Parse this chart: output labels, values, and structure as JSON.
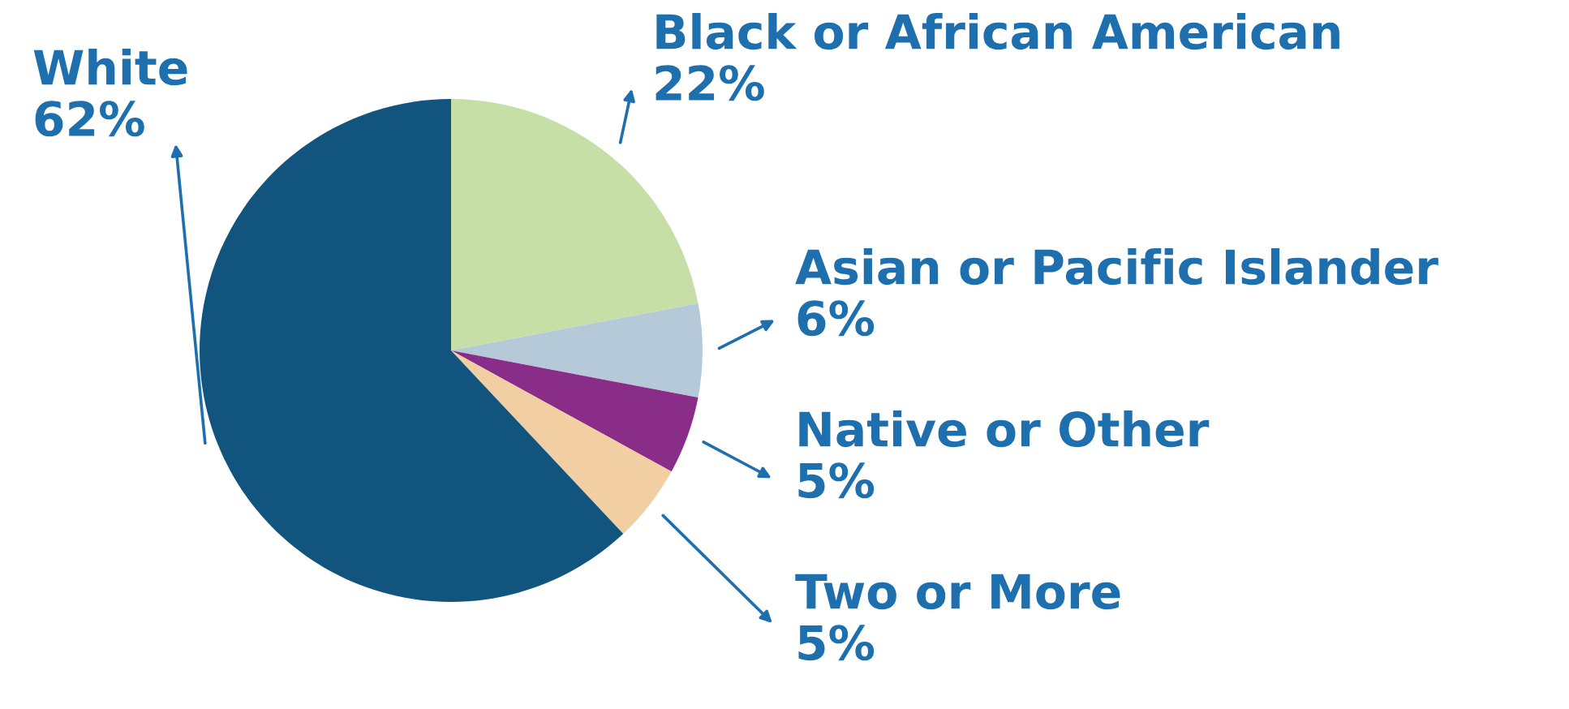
{
  "chart_data": {
    "type": "pie",
    "categories": [
      "Black or African American",
      "Asian or Pacific Islander",
      "Native or Other",
      "Two or More",
      "White"
    ],
    "values": [
      22,
      6,
      5,
      5,
      62
    ],
    "colors": [
      "#c6dfa6",
      "#b5c9d8",
      "#8a2d89",
      "#f2cfa2",
      "#11557f"
    ],
    "value_labels": [
      "22%",
      "6%",
      "5%",
      "5%",
      "62%"
    ],
    "legend": false
  }
}
